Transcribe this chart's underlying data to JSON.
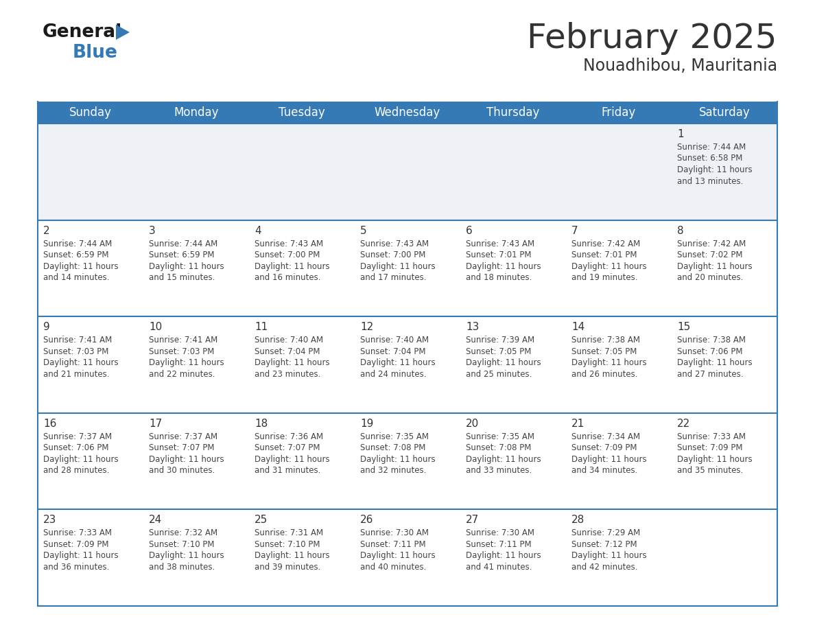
{
  "title": "February 2025",
  "subtitle": "Nouadhibou, Mauritania",
  "header_color": "#3579b5",
  "header_text_color": "#ffffff",
  "day_names": [
    "Sunday",
    "Monday",
    "Tuesday",
    "Wednesday",
    "Thursday",
    "Friday",
    "Saturday"
  ],
  "background_color": "#ffffff",
  "row1_bg_color": "#eef2f7",
  "row_bg_color": "#ffffff",
  "row_separator_color": "#3579b5",
  "text_color": "#444444",
  "day_number_color": "#333333",
  "calendar": [
    [
      null,
      null,
      null,
      null,
      null,
      null,
      1
    ],
    [
      2,
      3,
      4,
      5,
      6,
      7,
      8
    ],
    [
      9,
      10,
      11,
      12,
      13,
      14,
      15
    ],
    [
      16,
      17,
      18,
      19,
      20,
      21,
      22
    ],
    [
      23,
      24,
      25,
      26,
      27,
      28,
      null
    ]
  ],
  "day_data": {
    "1": {
      "sunrise": "7:44 AM",
      "sunset": "6:58 PM",
      "daylight_hours": 11,
      "daylight_minutes": 13
    },
    "2": {
      "sunrise": "7:44 AM",
      "sunset": "6:59 PM",
      "daylight_hours": 11,
      "daylight_minutes": 14
    },
    "3": {
      "sunrise": "7:44 AM",
      "sunset": "6:59 PM",
      "daylight_hours": 11,
      "daylight_minutes": 15
    },
    "4": {
      "sunrise": "7:43 AM",
      "sunset": "7:00 PM",
      "daylight_hours": 11,
      "daylight_minutes": 16
    },
    "5": {
      "sunrise": "7:43 AM",
      "sunset": "7:00 PM",
      "daylight_hours": 11,
      "daylight_minutes": 17
    },
    "6": {
      "sunrise": "7:43 AM",
      "sunset": "7:01 PM",
      "daylight_hours": 11,
      "daylight_minutes": 18
    },
    "7": {
      "sunrise": "7:42 AM",
      "sunset": "7:01 PM",
      "daylight_hours": 11,
      "daylight_minutes": 19
    },
    "8": {
      "sunrise": "7:42 AM",
      "sunset": "7:02 PM",
      "daylight_hours": 11,
      "daylight_minutes": 20
    },
    "9": {
      "sunrise": "7:41 AM",
      "sunset": "7:03 PM",
      "daylight_hours": 11,
      "daylight_minutes": 21
    },
    "10": {
      "sunrise": "7:41 AM",
      "sunset": "7:03 PM",
      "daylight_hours": 11,
      "daylight_minutes": 22
    },
    "11": {
      "sunrise": "7:40 AM",
      "sunset": "7:04 PM",
      "daylight_hours": 11,
      "daylight_minutes": 23
    },
    "12": {
      "sunrise": "7:40 AM",
      "sunset": "7:04 PM",
      "daylight_hours": 11,
      "daylight_minutes": 24
    },
    "13": {
      "sunrise": "7:39 AM",
      "sunset": "7:05 PM",
      "daylight_hours": 11,
      "daylight_minutes": 25
    },
    "14": {
      "sunrise": "7:38 AM",
      "sunset": "7:05 PM",
      "daylight_hours": 11,
      "daylight_minutes": 26
    },
    "15": {
      "sunrise": "7:38 AM",
      "sunset": "7:06 PM",
      "daylight_hours": 11,
      "daylight_minutes": 27
    },
    "16": {
      "sunrise": "7:37 AM",
      "sunset": "7:06 PM",
      "daylight_hours": 11,
      "daylight_minutes": 28
    },
    "17": {
      "sunrise": "7:37 AM",
      "sunset": "7:07 PM",
      "daylight_hours": 11,
      "daylight_minutes": 30
    },
    "18": {
      "sunrise": "7:36 AM",
      "sunset": "7:07 PM",
      "daylight_hours": 11,
      "daylight_minutes": 31
    },
    "19": {
      "sunrise": "7:35 AM",
      "sunset": "7:08 PM",
      "daylight_hours": 11,
      "daylight_minutes": 32
    },
    "20": {
      "sunrise": "7:35 AM",
      "sunset": "7:08 PM",
      "daylight_hours": 11,
      "daylight_minutes": 33
    },
    "21": {
      "sunrise": "7:34 AM",
      "sunset": "7:09 PM",
      "daylight_hours": 11,
      "daylight_minutes": 34
    },
    "22": {
      "sunrise": "7:33 AM",
      "sunset": "7:09 PM",
      "daylight_hours": 11,
      "daylight_minutes": 35
    },
    "23": {
      "sunrise": "7:33 AM",
      "sunset": "7:09 PM",
      "daylight_hours": 11,
      "daylight_minutes": 36
    },
    "24": {
      "sunrise": "7:32 AM",
      "sunset": "7:10 PM",
      "daylight_hours": 11,
      "daylight_minutes": 38
    },
    "25": {
      "sunrise": "7:31 AM",
      "sunset": "7:10 PM",
      "daylight_hours": 11,
      "daylight_minutes": 39
    },
    "26": {
      "sunrise": "7:30 AM",
      "sunset": "7:11 PM",
      "daylight_hours": 11,
      "daylight_minutes": 40
    },
    "27": {
      "sunrise": "7:30 AM",
      "sunset": "7:11 PM",
      "daylight_hours": 11,
      "daylight_minutes": 41
    },
    "28": {
      "sunrise": "7:29 AM",
      "sunset": "7:12 PM",
      "daylight_hours": 11,
      "daylight_minutes": 42
    }
  },
  "logo_text_general": "General",
  "logo_text_blue": "Blue",
  "logo_color_general": "#1a1a1a",
  "logo_color_blue": "#3579b5",
  "logo_triangle_color": "#3579b5",
  "title_fontsize": 36,
  "subtitle_fontsize": 17,
  "header_fontsize": 12,
  "day_num_fontsize": 11,
  "info_fontsize": 8.5
}
